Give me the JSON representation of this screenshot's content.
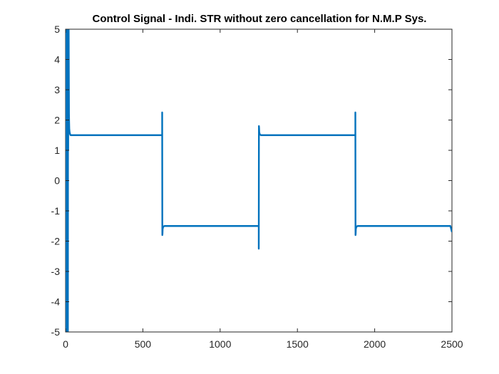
{
  "chart_data": {
    "type": "line",
    "title": "Control Signal - Indi. STR without zero cancellation for N.M.P Sys.",
    "xlabel": "",
    "ylabel": "",
    "xlim": [
      0,
      2500
    ],
    "ylim": [
      -5,
      5
    ],
    "x_ticks": [
      "0",
      "500",
      "1000",
      "1500",
      "2000",
      "2500"
    ],
    "y_ticks": [
      "5",
      "4",
      "3",
      "2",
      "1",
      "0",
      "-1",
      "-2",
      "-3",
      "-4",
      "-5"
    ],
    "grid": false,
    "series": [
      {
        "color": "#0072BD",
        "x": [
          0,
          1,
          2,
          3,
          4,
          5,
          6,
          7,
          8,
          9,
          10,
          11,
          12,
          13,
          14,
          15,
          16,
          17,
          18,
          19,
          20,
          21,
          22,
          23,
          24,
          26,
          28,
          32,
          40,
          60,
          300,
          625,
          625,
          626,
          627,
          628,
          632,
          640,
          660,
          900,
          1250,
          1250,
          1251,
          1252,
          1253,
          1257,
          1265,
          1280,
          1500,
          1875,
          1875,
          1876,
          1877,
          1878,
          1882,
          1890,
          1905,
          2200,
          2490,
          2500
        ],
        "y": [
          0,
          -5,
          5,
          -5,
          5,
          -5,
          5,
          -5,
          5,
          -5,
          5,
          -5,
          5,
          -5,
          5,
          -5,
          5,
          1,
          5,
          2,
          5,
          3.5,
          2.2,
          1.9,
          1.7,
          1.6,
          1.55,
          1.5,
          1.5,
          1.5,
          1.5,
          1.5,
          2.25,
          -1.8,
          -1.75,
          -1.6,
          -1.52,
          -1.5,
          -1.5,
          -1.5,
          -1.5,
          -2.25,
          1.8,
          1.75,
          1.6,
          1.52,
          1.5,
          1.5,
          1.5,
          1.5,
          2.25,
          -1.8,
          -1.75,
          -1.6,
          -1.52,
          -1.5,
          -1.5,
          -1.5,
          -1.5,
          -1.7
        ]
      }
    ]
  }
}
